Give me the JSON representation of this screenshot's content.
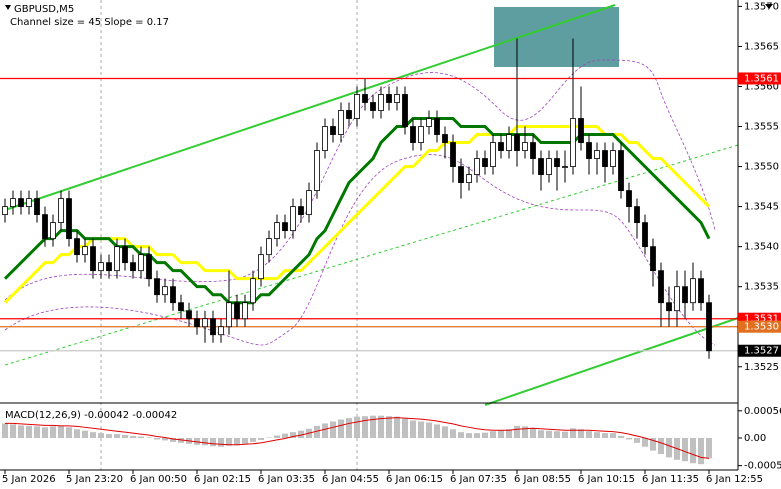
{
  "chart_data": [
    {
      "type": "candlestick",
      "title": "GBPUSD,M5",
      "subtitle": "Channel size = 45 Slope = 0.17",
      "categories": [
        "5 Jan 2026",
        null,
        null,
        null,
        null,
        null,
        null,
        null,
        "5 Jan 23:20",
        null,
        null,
        null,
        null,
        null,
        null,
        null,
        "6 Jan 00:50",
        null,
        null,
        null,
        null,
        null,
        null,
        null,
        "6 Jan 02:15",
        null,
        null,
        null,
        null,
        null,
        null,
        null,
        "6 Jan 03:35",
        null,
        null,
        null,
        null,
        null,
        null,
        null,
        "6 Jan 04:55",
        null,
        null,
        null,
        null,
        null,
        null,
        null,
        "6 Jan 06:15",
        null,
        null,
        null,
        null,
        null,
        null,
        null,
        "6 Jan 07:35",
        null,
        null,
        null,
        null,
        null,
        null,
        null,
        "6 Jan 08:55",
        null,
        null,
        null,
        null,
        null,
        null,
        null,
        "6 Jan 10:15",
        null,
        null,
        null,
        null,
        null,
        null,
        null,
        "6 Jan 11:35",
        null,
        null,
        null,
        null,
        null,
        null,
        null,
        "6 Jan 12:55"
      ],
      "open": [
        1.3544,
        1.3545,
        1.3546,
        1.3545,
        1.3546,
        1.3544,
        1.3541,
        1.3543,
        1.3546,
        1.3541,
        1.3539,
        1.354,
        1.3537,
        1.3538,
        1.3537,
        1.354,
        1.3538,
        1.3537,
        1.3539,
        1.3536,
        1.3534,
        1.3535,
        1.3533,
        1.3532,
        1.3531,
        1.353,
        1.3531,
        1.3529,
        1.353,
        1.3533,
        1.3531,
        1.3533,
        1.3536,
        1.3539,
        1.3541,
        1.3543,
        1.3542,
        1.3545,
        1.3544,
        1.3547,
        1.3552,
        1.3555,
        1.3554,
        1.3557,
        1.3556,
        1.3559,
        1.3558,
        1.3557,
        1.3559,
        1.3558,
        1.3559,
        1.3555,
        1.3553,
        1.3555,
        1.3556,
        1.3554,
        1.3553,
        1.355,
        1.3548,
        1.3549,
        1.3551,
        1.355,
        1.3553,
        1.3552,
        1.3554,
        1.3552,
        1.3553,
        1.3551,
        1.3549,
        1.3551,
        1.355,
        1.355,
        1.3556,
        1.3553,
        1.3551,
        1.3552,
        1.355,
        1.3552,
        1.3547,
        1.3545,
        1.3543,
        1.354,
        1.3537,
        1.3533,
        1.3532,
        1.3535,
        1.3533,
        1.3536,
        1.3533
      ],
      "high": [
        1.3546,
        1.3547,
        1.3547,
        1.3547,
        1.3547,
        1.3545,
        1.3544,
        1.3547,
        1.3547,
        1.3542,
        1.3541,
        1.3541,
        1.3539,
        1.3539,
        1.3541,
        1.3541,
        1.3539,
        1.354,
        1.354,
        1.3537,
        1.3536,
        1.3536,
        1.3534,
        1.3533,
        1.3532,
        1.3532,
        1.3532,
        1.3531,
        1.3537,
        1.3534,
        1.3534,
        1.3537,
        1.354,
        1.3542,
        1.3544,
        1.3544,
        1.3546,
        1.3546,
        1.3548,
        1.3553,
        1.3556,
        1.3556,
        1.3558,
        1.3558,
        1.356,
        1.3561,
        1.3559,
        1.356,
        1.356,
        1.356,
        1.356,
        1.3556,
        1.3556,
        1.3557,
        1.3557,
        1.3555,
        1.3554,
        1.3551,
        1.355,
        1.3552,
        1.3552,
        1.3554,
        1.3554,
        1.3555,
        1.3566,
        1.3555,
        1.3554,
        1.3552,
        1.3552,
        1.3552,
        1.3552,
        1.3566,
        1.356,
        1.3554,
        1.3553,
        1.3553,
        1.3553,
        1.3553,
        1.3548,
        1.3546,
        1.3544,
        1.3541,
        1.3538,
        1.3535,
        1.3537,
        1.3537,
        1.3538,
        1.3537,
        1.3534
      ],
      "low": [
        1.3543,
        1.3544,
        1.3544,
        1.3544,
        1.3543,
        1.354,
        1.354,
        1.3542,
        1.354,
        1.3538,
        1.3538,
        1.3536,
        1.3536,
        1.3536,
        1.3536,
        1.3537,
        1.3536,
        1.3536,
        1.3535,
        1.3533,
        1.3533,
        1.3532,
        1.3531,
        1.353,
        1.3529,
        1.3528,
        1.3528,
        1.3528,
        1.3529,
        1.353,
        1.353,
        1.3532,
        1.3535,
        1.3538,
        1.354,
        1.3541,
        1.3541,
        1.3543,
        1.3543,
        1.3546,
        1.3551,
        1.3553,
        1.3553,
        1.3555,
        1.3555,
        1.3557,
        1.3556,
        1.3556,
        1.3557,
        1.3557,
        1.3554,
        1.3552,
        1.3552,
        1.3554,
        1.3553,
        1.3551,
        1.3548,
        1.3546,
        1.3547,
        1.3548,
        1.3549,
        1.3549,
        1.3551,
        1.3551,
        1.355,
        1.3551,
        1.3549,
        1.3547,
        1.3548,
        1.3547,
        1.3548,
        1.3549,
        1.3552,
        1.3549,
        1.3549,
        1.3548,
        1.3549,
        1.3546,
        1.3543,
        1.3541,
        1.3539,
        1.3535,
        1.353,
        1.353,
        1.353,
        1.3531,
        1.3532,
        1.3532,
        1.3526
      ],
      "close": [
        1.3545,
        1.3546,
        1.3545,
        1.3546,
        1.3544,
        1.3541,
        1.3543,
        1.3546,
        1.3541,
        1.3539,
        1.354,
        1.3537,
        1.3538,
        1.3537,
        1.354,
        1.3538,
        1.3537,
        1.3539,
        1.3536,
        1.3534,
        1.3535,
        1.3533,
        1.3532,
        1.3531,
        1.353,
        1.3531,
        1.3529,
        1.353,
        1.3533,
        1.3531,
        1.3533,
        1.3536,
        1.3539,
        1.3541,
        1.3543,
        1.3542,
        1.3545,
        1.3544,
        1.3547,
        1.3552,
        1.3555,
        1.3554,
        1.3557,
        1.3556,
        1.3559,
        1.3558,
        1.3557,
        1.3559,
        1.3558,
        1.3559,
        1.3555,
        1.3553,
        1.3555,
        1.3556,
        1.3554,
        1.3553,
        1.355,
        1.3548,
        1.3549,
        1.3551,
        1.355,
        1.3553,
        1.3552,
        1.3554,
        1.3552,
        1.3553,
        1.3551,
        1.3549,
        1.3551,
        1.355,
        1.355,
        1.3556,
        1.3553,
        1.3551,
        1.3552,
        1.355,
        1.3552,
        1.3547,
        1.3545,
        1.3543,
        1.354,
        1.3537,
        1.3533,
        1.3532,
        1.3535,
        1.3533,
        1.3536,
        1.3533,
        1.3527
      ],
      "color_up": "#ffffff",
      "color_down": "#000000",
      "series": [
        {
          "color": "#ffff00",
          "values": [
            1.3533,
            1.3534,
            1.3535,
            1.3536,
            1.3537,
            1.3538,
            1.3538,
            1.3539,
            1.3539,
            1.354,
            1.354,
            1.3541,
            1.3541,
            1.3541,
            1.3541,
            1.3541,
            1.354,
            1.354,
            1.354,
            1.3539,
            1.3539,
            1.3539,
            1.3538,
            1.3538,
            1.3538,
            1.3537,
            1.3537,
            1.3537,
            1.3537,
            1.3536,
            1.3536,
            1.3536,
            1.3536,
            1.3536,
            1.3536,
            1.3537,
            1.3537,
            1.3537,
            1.3538,
            1.3539,
            1.354,
            1.3541,
            1.3542,
            1.3543,
            1.3544,
            1.3545,
            1.3546,
            1.3547,
            1.3548,
            1.3549,
            1.355,
            1.355,
            1.3551,
            1.3552,
            1.3552,
            1.3553,
            1.3553,
            1.3553,
            1.3553,
            1.3554,
            1.3554,
            1.3554,
            1.3554,
            1.3554,
            1.3555,
            1.3555,
            1.3555,
            1.3555,
            1.3555,
            1.3555,
            1.3555,
            1.3555,
            1.3555,
            1.3555,
            1.3555,
            1.3554,
            1.3554,
            1.3554,
            1.3553,
            1.3553,
            1.3552,
            1.3551,
            1.3551,
            1.355,
            1.3549,
            1.3548,
            1.3547,
            1.3546,
            1.3545
          ]
        },
        {
          "color": "#007800",
          "values": [
            1.3536,
            1.3537,
            1.3538,
            1.3539,
            1.354,
            1.3541,
            1.3541,
            1.3542,
            1.3542,
            1.3542,
            1.3541,
            1.3541,
            1.3541,
            1.3541,
            1.354,
            1.354,
            1.354,
            1.3539,
            1.3539,
            1.3538,
            1.3538,
            1.3537,
            1.3537,
            1.3536,
            1.3535,
            1.3535,
            1.3534,
            1.3534,
            1.3533,
            1.3533,
            1.3533,
            1.3533,
            1.3534,
            1.3534,
            1.3535,
            1.3536,
            1.3537,
            1.3538,
            1.3539,
            1.3541,
            1.3542,
            1.3544,
            1.3546,
            1.3548,
            1.3549,
            1.355,
            1.3551,
            1.3553,
            1.3554,
            1.3555,
            1.3555,
            1.3556,
            1.3556,
            1.3556,
            1.3556,
            1.3556,
            1.3556,
            1.3555,
            1.3555,
            1.3555,
            1.3555,
            1.3554,
            1.3554,
            1.3554,
            1.3554,
            1.3554,
            1.3554,
            1.3553,
            1.3553,
            1.3553,
            1.3553,
            1.3553,
            1.3554,
            1.3554,
            1.3554,
            1.3554,
            1.3554,
            1.3553,
            1.3552,
            1.3551,
            1.355,
            1.3549,
            1.3548,
            1.3547,
            1.3546,
            1.3545,
            1.3544,
            1.3543,
            1.3541
          ]
        }
      ],
      "levels": [
        {
          "value": 1.3561,
          "label": "1.3561",
          "color": "#ff0000"
        },
        {
          "value": 1.3531,
          "label": "1.3531",
          "color": "#ff0000"
        },
        {
          "value": 1.353,
          "label": "1.3530",
          "color": "#e07020"
        },
        {
          "value": 1.3527,
          "label": "1.3527",
          "color": "#000000",
          "line_color": "#c8c8c8"
        }
      ],
      "ylim": [
        1.35206,
        1.35708
      ],
      "yticks": [
        {
          "value": 1.357,
          "label": "1.3570"
        },
        1.3565,
        {
          "value": 1.356,
          "label": "1.3560"
        },
        1.3555,
        {
          "value": 1.355,
          "label": "1.3550"
        },
        1.3545,
        {
          "value": 1.354,
          "label": "1.3540"
        },
        1.3535,
        {
          "value": 1.353,
          "label": "1.3530"
        },
        1.3525
      ]
    },
    {
      "type": "macd",
      "title": "MACD(12,26,9) -0.00042 -0.00042",
      "histogram": {
        "color": "#c0c0c0",
        "values": [
          0.0003,
          0.00028,
          0.00026,
          0.00025,
          0.00024,
          0.00022,
          0.00024,
          0.00025,
          0.00022,
          0.00018,
          0.00015,
          0.00012,
          0.0001,
          8e-05,
          8e-05,
          6e-05,
          4e-05,
          3e-05,
          1e-05,
          -3e-05,
          -5e-05,
          -8e-05,
          -0.0001,
          -0.00012,
          -0.00014,
          -0.00015,
          -0.00017,
          -0.00018,
          -0.00016,
          -0.00015,
          -0.00012,
          -8e-05,
          -4e-05,
          1e-05,
          5e-05,
          9e-05,
          0.00012,
          0.00015,
          0.00019,
          0.00025,
          0.0003,
          0.00034,
          0.00038,
          0.00041,
          0.00044,
          0.00045,
          0.00046,
          0.00046,
          0.00045,
          0.00044,
          0.0004,
          0.00036,
          0.00034,
          0.00032,
          0.00028,
          0.00024,
          0.00018,
          0.00012,
          0.0001,
          0.0001,
          0.00011,
          0.00014,
          0.00016,
          0.00018,
          0.00025,
          0.00024,
          0.0002,
          0.00016,
          0.00015,
          0.00014,
          0.00013,
          0.0002,
          0.00018,
          0.00014,
          0.00012,
          0.0001,
          0.0001,
          4e-05,
          -3e-05,
          -0.0001,
          -0.00018,
          -0.00026,
          -0.00033,
          -0.0004,
          -0.00045,
          -0.00048,
          -0.00052,
          -0.00054,
          -0.00042
        ]
      },
      "signal": {
        "color": "#e00000",
        "values": [
          0.0003,
          0.0003,
          0.00029,
          0.00028,
          0.00027,
          0.00026,
          0.00026,
          0.00025,
          0.00025,
          0.00024,
          0.00022,
          0.0002,
          0.00018,
          0.00016,
          0.00014,
          0.00012,
          0.0001,
          8e-05,
          6e-05,
          3e-05,
          1e-05,
          -2e-05,
          -4e-05,
          -6e-05,
          -8e-05,
          -0.0001,
          -0.00012,
          -0.00013,
          -0.00014,
          -0.00014,
          -0.00013,
          -0.00012,
          -0.0001,
          -7e-05,
          -4e-05,
          -1e-05,
          3e-05,
          6e-05,
          0.0001,
          0.00014,
          0.00018,
          0.00022,
          0.00026,
          0.0003,
          0.00033,
          0.00036,
          0.00038,
          0.0004,
          0.00041,
          0.00042,
          0.00041,
          0.0004,
          0.00039,
          0.00037,
          0.00035,
          0.00032,
          0.00029,
          0.00025,
          0.00022,
          0.00019,
          0.00017,
          0.00016,
          0.00016,
          0.00016,
          0.00018,
          0.00019,
          0.0002,
          0.00019,
          0.00018,
          0.00017,
          0.00016,
          0.00016,
          0.00016,
          0.00016,
          0.00015,
          0.00014,
          0.00013,
          0.00011,
          8e-05,
          4e-05,
          0.0,
          -5e-05,
          -0.0001,
          -0.00016,
          -0.00022,
          -0.00028,
          -0.00034,
          -0.0004,
          -0.00042
        ]
      },
      "ylim": [
        -0.00066,
        0.00068
      ],
      "yticks": [
        0.00056,
        {
          "value": 0,
          "label": "0.00"
        },
        -0.00057
      ]
    }
  ]
}
